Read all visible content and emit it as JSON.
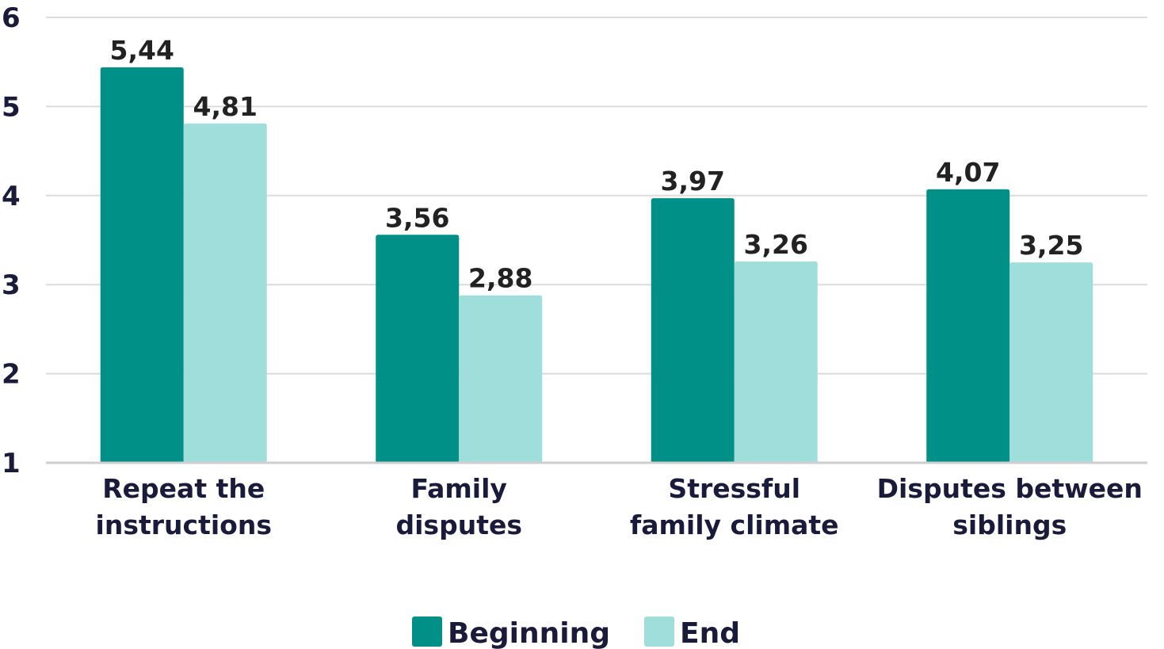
{
  "chart_data": {
    "type": "bar",
    "categories": [
      [
        "Repeat the",
        "instructions"
      ],
      [
        "Family",
        "disputes"
      ],
      [
        "Stressful",
        "family climate"
      ],
      [
        "Disputes between",
        "siblings"
      ]
    ],
    "series": [
      {
        "name": "Beginning",
        "color": "#009088",
        "values": [
          5.44,
          3.56,
          3.97,
          4.07
        ],
        "labels": [
          "5,44",
          "3,56",
          "3,97",
          "4,07"
        ]
      },
      {
        "name": "End",
        "color": "#a0dedc",
        "values": [
          4.81,
          2.88,
          3.26,
          3.25
        ],
        "labels": [
          "4,81",
          "2,88",
          "3,26",
          "3,25"
        ]
      }
    ],
    "y_ticks": [
      "1",
      "2",
      "3",
      "4",
      "5",
      "6"
    ],
    "ylim": [
      1,
      6
    ],
    "grid": true,
    "legend_position": "bottom"
  }
}
